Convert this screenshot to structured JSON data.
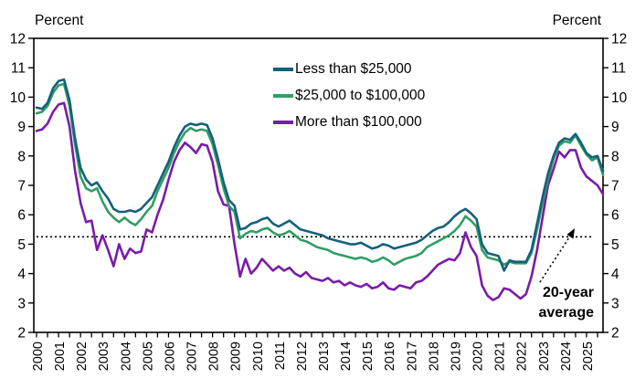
{
  "page": {
    "left_axis_title": "Percent",
    "right_axis_title": "Percent"
  },
  "annotation": {
    "average_label": "20-year average"
  },
  "chart_data": {
    "type": "line",
    "title": "",
    "xlabel": "",
    "ylabel": "Percent",
    "ylabel_right": "Percent",
    "xlim": [
      2000,
      2025.75
    ],
    "ylim": [
      2,
      12
    ],
    "y_ticks": [
      2,
      3,
      4,
      5,
      6,
      7,
      8,
      9,
      10,
      11,
      12
    ],
    "x_tick_years": [
      "2000",
      "2001",
      "2002",
      "2003",
      "2004",
      "2005",
      "2006",
      "2007",
      "2008",
      "2009",
      "2010",
      "2011",
      "2012",
      "2013",
      "2014",
      "2015",
      "2016",
      "2017",
      "2018",
      "2019",
      "2020",
      "2021",
      "2022",
      "2023",
      "2024",
      "2025"
    ],
    "minor_x_tick_interval_years": 0.5,
    "grid": false,
    "legend_position": "inside-top-center",
    "average_line": {
      "value": 5.25,
      "label": "20-year average",
      "style": "dotted",
      "color": "#000000"
    },
    "axis_color": "#000000",
    "x": [
      2000.0,
      2000.25,
      2000.5,
      2000.75,
      2001.0,
      2001.25,
      2001.5,
      2001.75,
      2002.0,
      2002.25,
      2002.5,
      2002.75,
      2003.0,
      2003.25,
      2003.5,
      2003.75,
      2004.0,
      2004.25,
      2004.5,
      2004.75,
      2005.0,
      2005.25,
      2005.5,
      2005.75,
      2006.0,
      2006.25,
      2006.5,
      2006.75,
      2007.0,
      2007.25,
      2007.5,
      2007.75,
      2008.0,
      2008.25,
      2008.5,
      2008.75,
      2009.0,
      2009.25,
      2009.5,
      2009.75,
      2010.0,
      2010.25,
      2010.5,
      2010.75,
      2011.0,
      2011.25,
      2011.5,
      2011.75,
      2012.0,
      2012.25,
      2012.5,
      2012.75,
      2013.0,
      2013.25,
      2013.5,
      2013.75,
      2014.0,
      2014.25,
      2014.5,
      2014.75,
      2015.0,
      2015.25,
      2015.5,
      2015.75,
      2016.0,
      2016.25,
      2016.5,
      2016.75,
      2017.0,
      2017.25,
      2017.5,
      2017.75,
      2018.0,
      2018.25,
      2018.5,
      2018.75,
      2019.0,
      2019.25,
      2019.5,
      2019.75,
      2020.0,
      2020.25,
      2020.5,
      2020.75,
      2021.0,
      2021.25,
      2021.5,
      2021.75,
      2022.0,
      2022.25,
      2022.5,
      2022.75,
      2023.0,
      2023.25,
      2023.5,
      2023.75,
      2024.0,
      2024.25,
      2024.5,
      2024.75,
      2025.0,
      2025.25,
      2025.5,
      2025.75
    ],
    "series": [
      {
        "name": "Less than $25,000",
        "color": "#15607A",
        "values": [
          9.65,
          9.6,
          9.8,
          10.3,
          10.55,
          10.6,
          9.9,
          8.6,
          7.6,
          7.2,
          7.0,
          7.1,
          6.8,
          6.55,
          6.2,
          6.1,
          6.1,
          6.15,
          6.1,
          6.2,
          6.4,
          6.6,
          7.0,
          7.4,
          7.8,
          8.3,
          8.7,
          9.0,
          9.1,
          9.05,
          9.1,
          9.05,
          8.6,
          7.9,
          7.1,
          6.5,
          6.3,
          5.5,
          5.55,
          5.7,
          5.75,
          5.85,
          5.9,
          5.7,
          5.6,
          5.7,
          5.8,
          5.65,
          5.5,
          5.45,
          5.4,
          5.35,
          5.3,
          5.2,
          5.15,
          5.1,
          5.05,
          5.0,
          5.0,
          5.05,
          4.95,
          4.85,
          4.9,
          5.0,
          4.95,
          4.85,
          4.9,
          4.95,
          5.0,
          5.05,
          5.15,
          5.3,
          5.45,
          5.55,
          5.6,
          5.75,
          5.95,
          6.1,
          6.2,
          6.05,
          5.85,
          5.0,
          4.7,
          4.65,
          4.6,
          4.1,
          4.45,
          4.4,
          4.4,
          4.4,
          4.8,
          5.7,
          6.6,
          7.4,
          8.0,
          8.45,
          8.6,
          8.55,
          8.75,
          8.45,
          8.1,
          7.95,
          8.0,
          7.5
        ]
      },
      {
        "name": "$25,000 to $100,000",
        "color": "#2F9E64",
        "values": [
          9.45,
          9.5,
          9.7,
          10.15,
          10.4,
          10.45,
          9.7,
          8.4,
          7.3,
          6.9,
          6.8,
          6.9,
          6.45,
          6.1,
          5.9,
          5.75,
          5.9,
          5.75,
          5.65,
          5.85,
          6.1,
          6.3,
          6.8,
          7.2,
          7.6,
          8.1,
          8.5,
          8.8,
          8.95,
          8.85,
          8.9,
          8.85,
          8.4,
          7.7,
          6.9,
          6.3,
          6.1,
          5.2,
          5.35,
          5.45,
          5.4,
          5.5,
          5.55,
          5.4,
          5.3,
          5.35,
          5.45,
          5.3,
          5.15,
          5.1,
          5.0,
          4.9,
          4.85,
          4.8,
          4.7,
          4.65,
          4.6,
          4.55,
          4.5,
          4.55,
          4.5,
          4.4,
          4.45,
          4.55,
          4.45,
          4.3,
          4.4,
          4.5,
          4.55,
          4.6,
          4.7,
          4.9,
          5.0,
          5.1,
          5.2,
          5.3,
          5.45,
          5.65,
          5.95,
          5.8,
          5.6,
          4.8,
          4.55,
          4.5,
          4.45,
          4.3,
          4.4,
          4.35,
          4.35,
          4.35,
          4.7,
          5.5,
          6.4,
          7.2,
          7.9,
          8.35,
          8.5,
          8.45,
          8.7,
          8.35,
          8.05,
          7.85,
          7.95,
          7.35
        ]
      },
      {
        "name": "More than $100,000",
        "color": "#7A1BA8",
        "values": [
          8.85,
          8.9,
          9.1,
          9.5,
          9.75,
          9.8,
          9.0,
          7.5,
          6.4,
          5.75,
          5.8,
          4.8,
          5.3,
          4.8,
          4.25,
          5.0,
          4.5,
          4.85,
          4.7,
          4.75,
          5.5,
          5.4,
          6.0,
          6.5,
          7.2,
          7.8,
          8.2,
          8.45,
          8.3,
          8.1,
          8.4,
          8.35,
          7.8,
          6.8,
          6.35,
          6.3,
          5.0,
          3.9,
          4.5,
          4.0,
          4.2,
          4.5,
          4.3,
          4.1,
          4.25,
          4.1,
          4.2,
          4.0,
          3.9,
          4.05,
          3.85,
          3.8,
          3.75,
          3.85,
          3.7,
          3.75,
          3.6,
          3.7,
          3.6,
          3.55,
          3.65,
          3.5,
          3.55,
          3.7,
          3.5,
          3.45,
          3.6,
          3.55,
          3.5,
          3.7,
          3.75,
          3.9,
          4.1,
          4.3,
          4.4,
          4.5,
          4.45,
          4.7,
          5.4,
          4.9,
          4.6,
          3.6,
          3.25,
          3.1,
          3.2,
          3.5,
          3.45,
          3.3,
          3.15,
          3.3,
          3.9,
          4.8,
          5.9,
          7.0,
          7.55,
          8.15,
          7.95,
          8.2,
          8.2,
          7.6,
          7.3,
          7.15,
          7.0,
          6.7
        ]
      }
    ]
  }
}
